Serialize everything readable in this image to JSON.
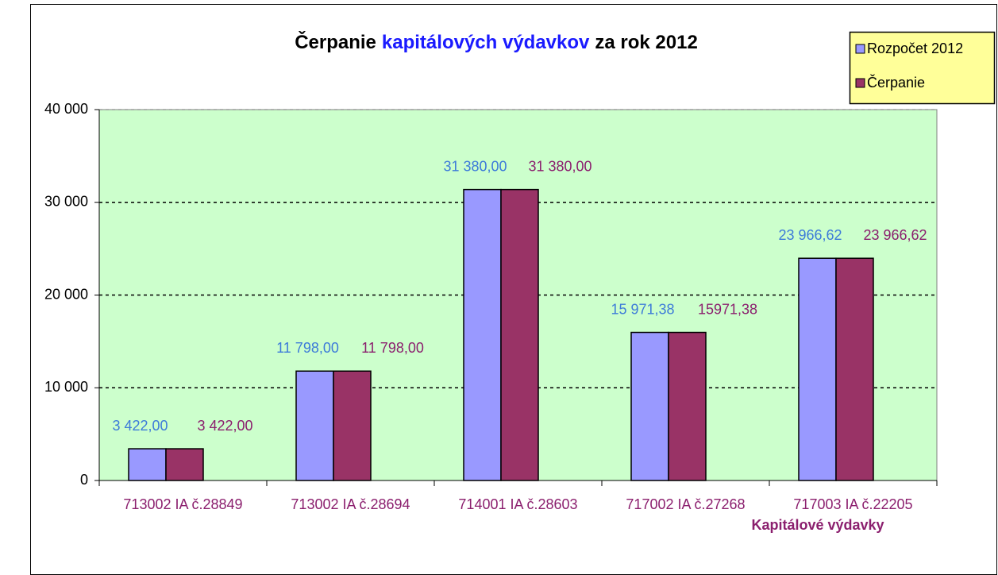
{
  "chart_data": {
    "type": "bar",
    "title": [
      "Čerpanie",
      "kapitálových výdavkov",
      "za rok 2012"
    ],
    "title_colors": [
      "#000000",
      "#1a1aff",
      "#000000"
    ],
    "x_label": "Kapitálové výdavky",
    "categories": [
      "713002 IA č.28849",
      "713002 IA č.28694",
      "714001 IA č.28603",
      "717002 IA č.27268",
      "717003 IA č.22205"
    ],
    "series": [
      {
        "name": "Rozpočet 2012",
        "color": "#9999ff",
        "label_color": "#3d7bd9",
        "values": [
          3422,
          11798,
          31380,
          15971.38,
          23966.62
        ],
        "value_labels": [
          "3 422,00",
          "11 798,00",
          "31 380,00",
          "15 971,38",
          "23 966,62"
        ]
      },
      {
        "name": "Čerpanie",
        "color": "#993366",
        "label_color": "#8b1f6e",
        "values": [
          3422,
          11798,
          31380,
          15971.38,
          23966.62
        ],
        "value_labels": [
          "3 422,00",
          "11 798,00",
          "31 380,00",
          "15971,38",
          "23 966,62"
        ]
      }
    ],
    "ylim": [
      0,
      40000
    ],
    "yticks": [
      0,
      {
        "value": 10000,
        "label": "10 000"
      },
      {
        "value": 20000,
        "label": "20 000"
      },
      {
        "value": 30000,
        "label": "30 000"
      },
      {
        "value": 40000,
        "label": "40 000"
      }
    ],
    "grid": true,
    "plot_background": "#ccffcc",
    "legend_position": "top-right",
    "legend_background": "#ffff99"
  }
}
